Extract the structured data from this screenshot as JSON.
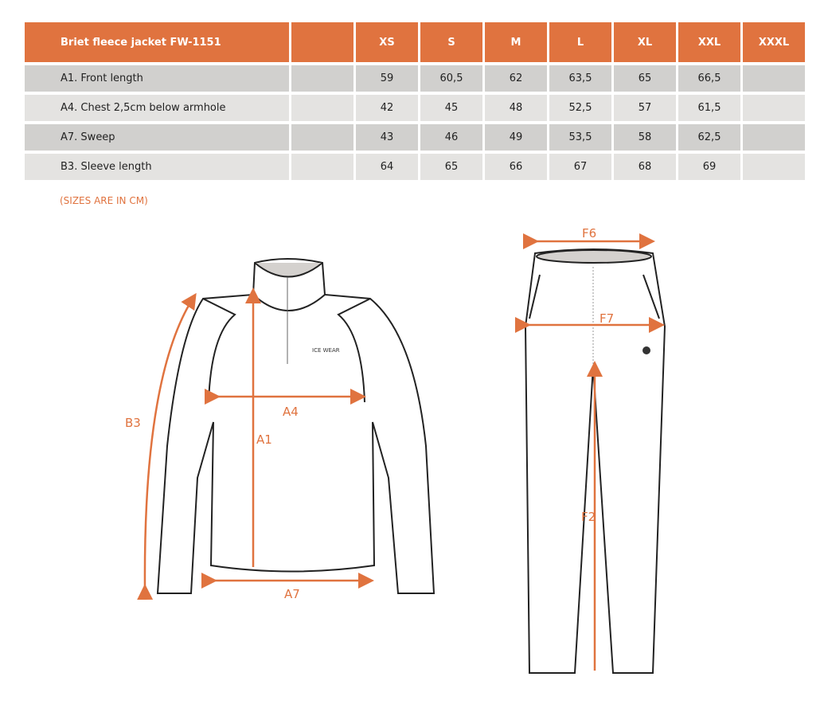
{
  "table": {
    "title": "Briet fleece jacket FW-1151",
    "sizes": [
      "XS",
      "S",
      "M",
      "L",
      "XL",
      "XXL",
      "XXXL"
    ],
    "rows": [
      {
        "label": "A1. Front length",
        "values": [
          "59",
          "60,5",
          "62",
          "63,5",
          "65",
          "66,5",
          ""
        ]
      },
      {
        "label": "A4. Chest 2,5cm below armhole",
        "values": [
          "42",
          "45",
          "48",
          "52,5",
          "57",
          "61,5",
          ""
        ]
      },
      {
        "label": "A7. Sweep",
        "values": [
          "43",
          "46",
          "49",
          "53,5",
          "58",
          "62,5",
          ""
        ]
      },
      {
        "label": "B3. Sleeve length",
        "values": [
          "64",
          "65",
          "66",
          "67",
          "68",
          "69",
          ""
        ]
      }
    ]
  },
  "note": "(SIZES ARE IN CM)",
  "diagram": {
    "jacket_labels": {
      "a1": "A1",
      "a4": "A4",
      "a7": "A7",
      "b3": "B3"
    },
    "pants_labels": {
      "f6": "F6",
      "f7": "F7",
      "f2": "F2"
    },
    "logo": "ICE WEAR",
    "accent": "#e0733f"
  }
}
